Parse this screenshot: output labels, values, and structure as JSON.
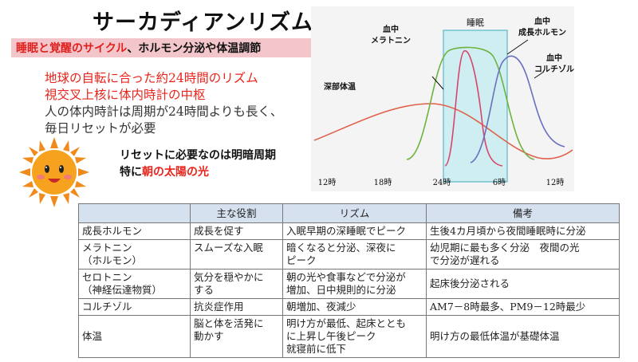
{
  "title": "サーカディアンリズム",
  "subtitle": {
    "red": "睡眠と覚醒のサイクル",
    "black": "、ホルモン分泌や体温調節"
  },
  "bullets": [
    {
      "text": "地球の自転に合った約24時間のリズム",
      "color": "#e8241c"
    },
    {
      "text": "視交叉上核に体内時計の中枢",
      "color": "#e8241c"
    },
    {
      "text": "人の体内時計は周期が24時間よりも長く、",
      "color": "#333333"
    },
    {
      "text": "毎日リセットが必要",
      "color": "#333333"
    }
  ],
  "reset": {
    "line1": "リセットに必要なのは明暗周期",
    "line2_prefix": "特に",
    "line2_red": "朝の太陽の光"
  },
  "chart": {
    "labels": {
      "sleep": "睡眠",
      "melatonin_1": "血中",
      "melatonin_2": "メラトニン",
      "gh_1": "血中",
      "gh_2": "成長ホルモン",
      "cortisol_1": "血中",
      "cortisol_2": "コルチゾル",
      "temp": "深部体温"
    },
    "ticks": [
      "12時",
      "18時",
      "24時",
      "6時",
      "12時"
    ],
    "colors": {
      "temp": "#e0604a",
      "melatonin": "#6db33f",
      "gh": "#d9456a",
      "cortisol": "#6a6fc0",
      "sleep_fill": "#cfeef2",
      "sleep_stroke": "#5bb7c8"
    }
  },
  "table": {
    "headers": [
      "",
      "主な役割",
      "リズム",
      "備考"
    ],
    "rows": [
      [
        "成長ホルモン",
        "成長を促す",
        "入眠早期の深睡眠でピーク",
        "生後4カ月頃から夜間睡眠時に分泌"
      ],
      [
        "メラトニン\n（ホルモン）",
        "スムーズな入眠",
        "暗くなると分泌、深夜に\nピーク",
        "幼児期に最も多く分泌　夜間の光\nで分泌が遅れる"
      ],
      [
        "セロトニン\n（神経伝達物質）",
        "気分を穏やかに\nする",
        "朝の光や食事などで分泌が\n増加、日中規則的に分泌",
        "起床後分泌される"
      ],
      [
        "コルチゾル",
        "抗炎症作用",
        "朝増加、夜減少",
        "AM7－8時最多、PM9－12時最少"
      ],
      [
        "体温",
        "脳と体を活発に\n動かす",
        "明け方が最低、起床ととも\nに上昇し午後ピーク\n就寝前に低下",
        "明け方の最低体温が基礎体温"
      ]
    ]
  }
}
